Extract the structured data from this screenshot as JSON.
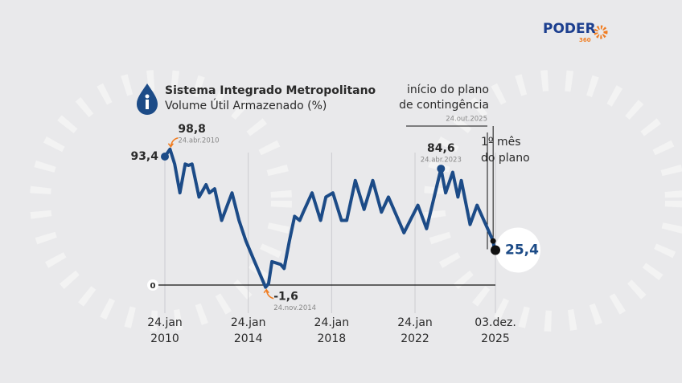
{
  "brand": {
    "name": "PODER",
    "sub": "360"
  },
  "chart_data": {
    "type": "line",
    "title": "Sistema Integrado Metropolitano",
    "subtitle": "Volume Útil Armazenado (%)",
    "color": "#1c4b87",
    "x": [
      "2010-01-24",
      "2010-04-24",
      "2010-07",
      "2010-10",
      "2011-01",
      "2011-03",
      "2011-05",
      "2011-09",
      "2012-01",
      "2012-03",
      "2012-06",
      "2012-10",
      "2013-04",
      "2013-08",
      "2013-12",
      "2014-04",
      "2014-11-24",
      "2015-01",
      "2015-03",
      "2015-08",
      "2015-10",
      "2016-01",
      "2016-04",
      "2016-07",
      "2016-09",
      "2017-02",
      "2017-07",
      "2017-10",
      "2018-02",
      "2018-07",
      "2018-10",
      "2019-03",
      "2019-08",
      "2020-01",
      "2020-06",
      "2020-10",
      "2021-07",
      "2022-03",
      "2022-08",
      "2023-04-24",
      "2023-07",
      "2023-11",
      "2024-02",
      "2024-04",
      "2024-09",
      "2025-01",
      "2025-10-24",
      "2025-11",
      "2025-12-03"
    ],
    "values": [
      93.4,
      98.8,
      88,
      67,
      88,
      87,
      88,
      64,
      73,
      67,
      70,
      47,
      67,
      47,
      32,
      20,
      -1.6,
      1,
      17,
      15,
      12,
      32,
      50,
      47,
      53,
      67,
      47,
      64,
      67,
      47,
      47,
      76,
      55,
      76,
      53,
      64,
      38,
      58,
      41,
      84.6,
      67,
      82,
      64,
      76,
      44,
      58,
      32,
      26,
      25.4
    ],
    "value_labels": [
      "93,4",
      "98,8",
      null,
      null,
      null,
      null,
      null,
      null,
      null,
      null,
      null,
      null,
      null,
      null,
      null,
      null,
      "-1,6",
      null,
      null,
      null,
      null,
      null,
      null,
      null,
      null,
      null,
      null,
      null,
      null,
      null,
      null,
      null,
      null,
      null,
      null,
      null,
      null,
      null,
      null,
      "84,6",
      null,
      null,
      null,
      null,
      null,
      null,
      null,
      null,
      "25,4"
    ],
    "date_labels": [
      null,
      "24.abr.2010",
      null,
      null,
      null,
      null,
      null,
      null,
      null,
      null,
      null,
      null,
      null,
      null,
      null,
      null,
      "24.nov.2014",
      null,
      null,
      null,
      null,
      null,
      null,
      null,
      null,
      null,
      null,
      null,
      null,
      null,
      null,
      null,
      null,
      null,
      null,
      null,
      null,
      null,
      null,
      "24.abr.2023",
      null,
      null,
      null,
      null,
      null,
      null,
      "24.out.2025",
      null,
      null
    ],
    "xlim": [
      "2010-01-24",
      "2025-12-03"
    ],
    "xticks": [
      {
        "value": "2010-01-24",
        "label": "24.jan 2010"
      },
      {
        "value": "2014-01-24",
        "label": "24.jan 2014"
      },
      {
        "value": "2018-01-24",
        "label": "24.jan 2018"
      },
      {
        "value": "2022-01-24",
        "label": "24.jan 2022"
      },
      {
        "value": "2025-12-03",
        "label": "03.dez. 2025"
      }
    ],
    "ylim": [
      -5,
      100
    ],
    "yticks": [
      0
    ],
    "annotations": [
      {
        "lines": [
          "início do plano",
          "de contingência"
        ]
      },
      {
        "lines": [
          "1º mês",
          "do plano"
        ]
      }
    ]
  }
}
